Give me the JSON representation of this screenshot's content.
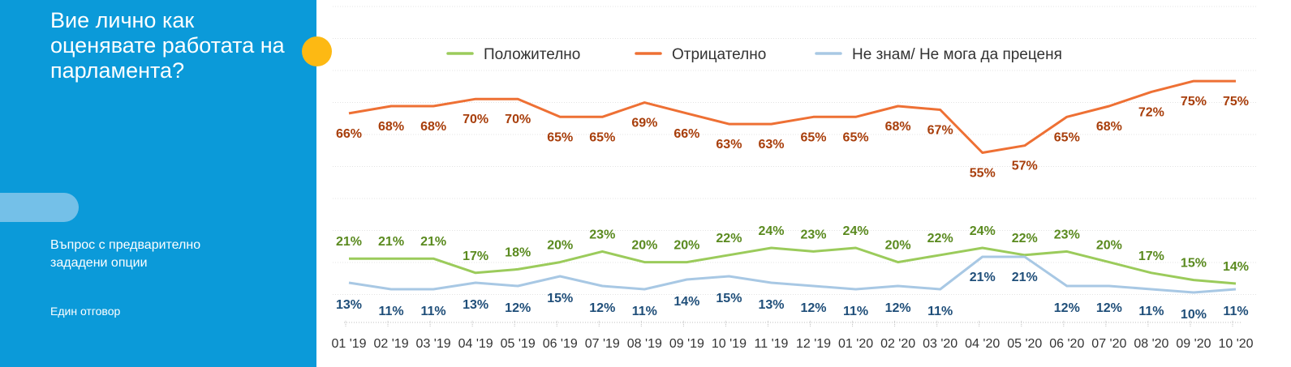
{
  "sidebar": {
    "title": "Вие лично как оценявате работата на парламента?",
    "question_type": "Въпрос с предварително зададени опции",
    "answer_type": "Един отговор",
    "bg_color": "#0b9ad9",
    "accent_color": "#fdb913"
  },
  "chart_data": {
    "type": "line",
    "x": [
      "01 '19",
      "02 '19",
      "03 '19",
      "04 '19",
      "05 '19",
      "06 '19",
      "07 '19",
      "08 '19",
      "09 '19",
      "10 '19",
      "11 '19",
      "12 '19",
      "01 '20",
      "02 '20",
      "03 '20",
      "04 '20",
      "05 '20",
      "06 '20",
      "07 '20",
      "08 '20",
      "09 '20",
      "10 '20"
    ],
    "series": [
      {
        "name": "Положително",
        "color": "#9bcb5b",
        "label_color": "#5a8a1f",
        "values": [
          21,
          21,
          21,
          17,
          18,
          20,
          23,
          20,
          20,
          22,
          24,
          23,
          24,
          20,
          22,
          24,
          22,
          23,
          20,
          17,
          15,
          14
        ]
      },
      {
        "name": "Отрицателно",
        "color": "#ee7034",
        "label_color": "#a83e0b",
        "values": [
          66,
          68,
          68,
          70,
          70,
          65,
          65,
          69,
          66,
          63,
          63,
          65,
          65,
          68,
          67,
          55,
          57,
          65,
          68,
          72,
          75,
          75
        ]
      },
      {
        "name": "Не знам/ Не мога да преценя",
        "color": "#a8c8e4",
        "label_color": "#1f4e79",
        "values": [
          13,
          11,
          11,
          13,
          12,
          15,
          12,
          11,
          14,
          15,
          13,
          12,
          11,
          12,
          11,
          21,
          21,
          12,
          12,
          11,
          10,
          11
        ]
      }
    ],
    "value_suffix": "%",
    "legend_position": "top",
    "grid": true,
    "ylim": [
      0,
      100
    ]
  }
}
